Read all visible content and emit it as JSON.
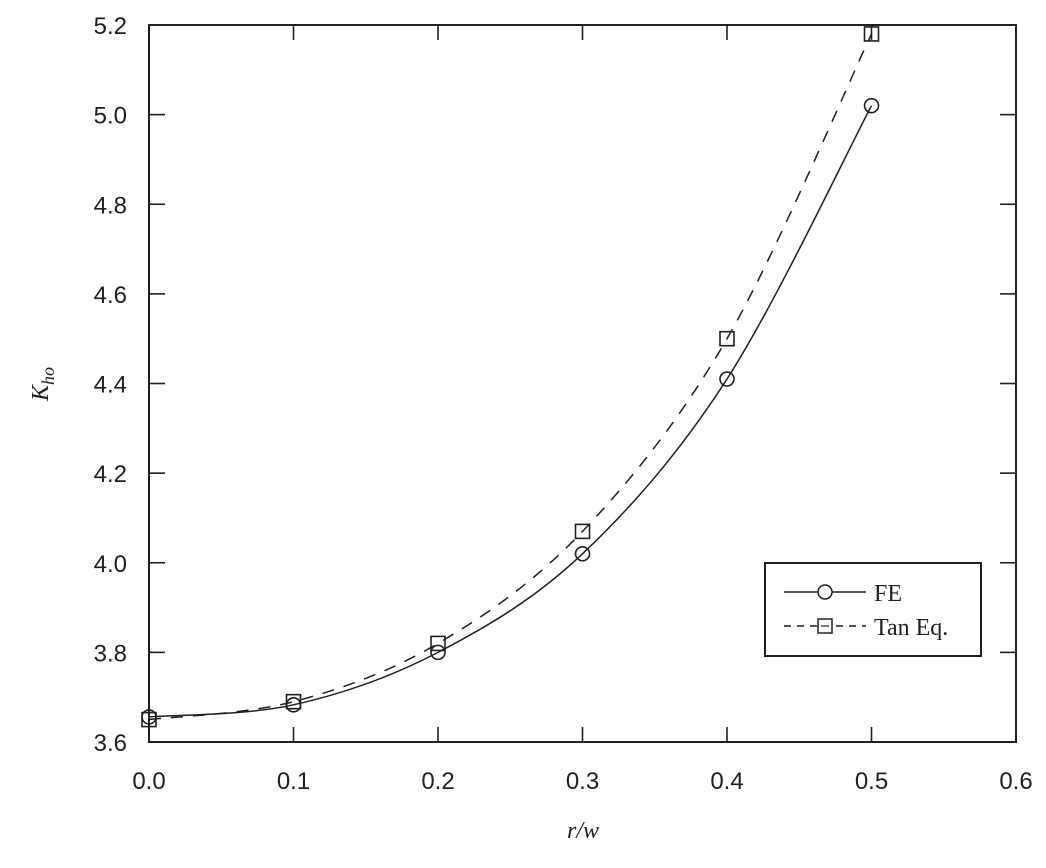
{
  "chart_data": {
    "type": "line",
    "title": "",
    "xlabel": "r/w",
    "ylabel": "K",
    "ylabel_subscript": "ho",
    "xlim": [
      0.0,
      0.6
    ],
    "ylim": [
      3.6,
      5.2
    ],
    "x_ticks": [
      "0.0",
      "0.1",
      "0.2",
      "0.3",
      "0.4",
      "0.5",
      "0.6"
    ],
    "y_ticks": [
      "3.6",
      "3.8",
      "4.0",
      "4.2",
      "4.4",
      "4.6",
      "4.8",
      "5.0",
      "5.2"
    ],
    "grid": false,
    "legend_position": "lower right",
    "x": [
      0.0,
      0.1,
      0.2,
      0.3,
      0.4,
      0.5
    ],
    "series": [
      {
        "name": "FE",
        "marker": "circle",
        "line": "solid",
        "values": [
          3.656,
          3.683,
          3.8,
          4.02,
          4.41,
          5.02
        ]
      },
      {
        "name": "Tan Eq.",
        "marker": "square",
        "line": "dashed",
        "values": [
          3.65,
          3.69,
          3.82,
          4.07,
          4.5,
          5.18
        ]
      }
    ]
  },
  "legend": {
    "items": [
      {
        "label": "FE"
      },
      {
        "label": "Tan Eq."
      }
    ]
  },
  "colors": {
    "ink": "#231f20",
    "background": "#ffffff"
  }
}
